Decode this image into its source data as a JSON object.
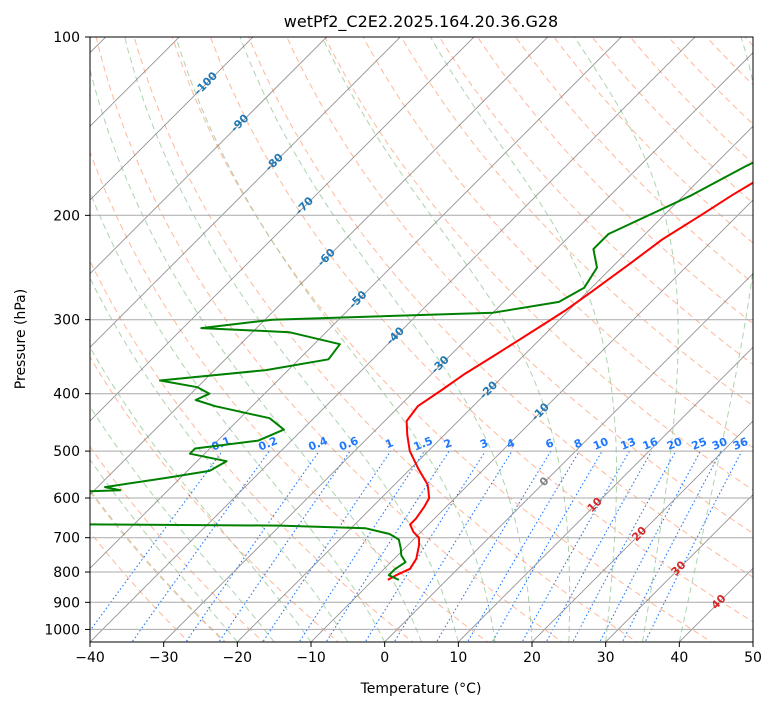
{
  "chart_data": {
    "type": "line",
    "subtype": "skew-T log-P diagram",
    "title": "wetPf2_C2E2.2025.164.20.36.G28",
    "xlabel": "Temperature (°C)",
    "ylabel": "Pressure (hPa)",
    "xlim": [
      -40,
      50
    ],
    "ylim": [
      1050,
      100
    ],
    "y_scale": "log",
    "grid": true,
    "x_ticks": [
      -40,
      -30,
      -20,
      -10,
      0,
      10,
      20,
      30,
      40,
      50
    ],
    "y_ticks": [
      100,
      200,
      300,
      400,
      500,
      600,
      700,
      800,
      900,
      1000
    ],
    "series": [
      {
        "color": "#ff0000",
        "points": [
          [
            3.0,
            100
          ],
          [
            2.5,
            110
          ],
          [
            -0.5,
            125
          ],
          [
            -4.5,
            135
          ],
          [
            -7.5,
            150
          ],
          [
            -11.5,
            170
          ],
          [
            -13.5,
            185
          ],
          [
            -15.0,
            200
          ],
          [
            -17.0,
            220
          ],
          [
            -18.0,
            240
          ],
          [
            -19.5,
            270
          ],
          [
            -20.5,
            290
          ],
          [
            -21.5,
            305
          ],
          [
            -24.0,
            345
          ],
          [
            -25.5,
            370
          ],
          [
            -26.5,
            395
          ],
          [
            -27.5,
            420
          ],
          [
            -27.0,
            445
          ],
          [
            -25.0,
            470
          ],
          [
            -22.5,
            500
          ],
          [
            -19.0,
            535
          ],
          [
            -15.5,
            570
          ],
          [
            -13.5,
            600
          ],
          [
            -13.0,
            620
          ],
          [
            -12.5,
            650
          ],
          [
            -12.5,
            665
          ],
          [
            -11.0,
            685
          ],
          [
            -9.5,
            700
          ],
          [
            -8.5,
            720
          ],
          [
            -7.0,
            760
          ],
          [
            -6.5,
            790
          ],
          [
            -7.5,
            810
          ],
          [
            -8.0,
            825
          ]
        ]
      },
      {
        "color": "#008000",
        "points": [
          [
            1.5,
            100
          ],
          [
            1.0,
            108
          ],
          [
            -3.5,
            120
          ],
          [
            -7.0,
            130
          ],
          [
            -12.0,
            150
          ],
          [
            -15.5,
            165
          ],
          [
            -19.0,
            185
          ],
          [
            -21.5,
            197
          ],
          [
            -25.0,
            215
          ],
          [
            -25.0,
            228
          ],
          [
            -22.0,
            245
          ],
          [
            -21.0,
            265
          ],
          [
            -22.5,
            280
          ],
          [
            -30.0,
            292
          ],
          [
            -59.0,
            300
          ],
          [
            -67.5,
            310
          ],
          [
            -55.0,
            315
          ],
          [
            -46.5,
            330
          ],
          [
            -46.0,
            350
          ],
          [
            -53.0,
            365
          ],
          [
            -66.0,
            380
          ],
          [
            -60.0,
            390
          ],
          [
            -57.5,
            400
          ],
          [
            -58.5,
            410
          ],
          [
            -55.0,
            420
          ],
          [
            -46.0,
            440
          ],
          [
            -42.5,
            460
          ],
          [
            -44.5,
            480
          ],
          [
            -52.0,
            495
          ],
          [
            -52.0,
            505
          ],
          [
            -46.0,
            520
          ],
          [
            -47.0,
            540
          ],
          [
            -52.0,
            555
          ],
          [
            -59.0,
            575
          ],
          [
            -56.5,
            582
          ],
          [
            -70.5,
            590
          ],
          [
            -82.0,
            600
          ],
          [
            -83.0,
            620
          ],
          [
            -68.0,
            635
          ],
          [
            -64.0,
            640
          ],
          [
            -82.0,
            650
          ],
          [
            -80.0,
            660
          ],
          [
            -54.0,
            665
          ],
          [
            -30.0,
            668
          ],
          [
            -18.0,
            675
          ],
          [
            -14.0,
            690
          ],
          [
            -12.0,
            705
          ],
          [
            -10.5,
            730
          ],
          [
            -9.5,
            750
          ],
          [
            -8.0,
            770
          ],
          [
            -8.5,
            790
          ],
          [
            -8.5,
            810
          ],
          [
            -6.5,
            825
          ]
        ]
      }
    ],
    "mixing_ratio_labels": [
      "0.1",
      "0.2",
      "0.4",
      "0.6",
      "1",
      "1.5",
      "2",
      "3",
      "4",
      "6",
      "8",
      "10",
      "13",
      "16",
      "20",
      "25",
      "30",
      "36"
    ],
    "mixing_ratio_values": [
      0.1,
      0.2,
      0.4,
      0.6,
      1,
      1.5,
      2,
      3,
      4,
      6,
      8,
      10,
      13,
      16,
      20,
      25,
      30,
      36
    ],
    "isotherm_labels": [
      {
        "value": -100,
        "text": "-100",
        "color": "#1f77b4"
      },
      {
        "value": -90,
        "text": "-90",
        "color": "#1f77b4"
      },
      {
        "value": -80,
        "text": "-80",
        "color": "#1f77b4"
      },
      {
        "value": -70,
        "text": "-70",
        "color": "#1f77b4"
      },
      {
        "value": -60,
        "text": "-60",
        "color": "#1f77b4"
      },
      {
        "value": -50,
        "text": "-50",
        "color": "#1f77b4"
      },
      {
        "value": -40,
        "text": "-40",
        "color": "#1f77b4"
      },
      {
        "value": -30,
        "text": "-30",
        "color": "#1f77b4"
      },
      {
        "value": -20,
        "text": "-20",
        "color": "#1f77b4"
      },
      {
        "value": -10,
        "text": "-10",
        "color": "#1f77b4"
      },
      {
        "value": 0,
        "text": "0",
        "color": "#808080"
      },
      {
        "value": 10,
        "text": "10",
        "color": "#d62728"
      },
      {
        "value": 20,
        "text": "20",
        "color": "#d62728"
      },
      {
        "value": 30,
        "text": "30",
        "color": "#d62728"
      },
      {
        "value": 40,
        "text": "40",
        "color": "#d62728"
      }
    ],
    "colors": {
      "temperature": "#ff0000",
      "dewpoint": "#008000",
      "isotherm": "#808080",
      "isobar": "#a9a9a9",
      "dry_adiabat": "#ffa07a",
      "moist_adiabat": "#98c898",
      "mixing_ratio": "#1e78ff",
      "pseudo_adiabat_bold": "#d2b48c",
      "cold_label": "#1f77b4",
      "warm_label": "#d62728"
    }
  }
}
